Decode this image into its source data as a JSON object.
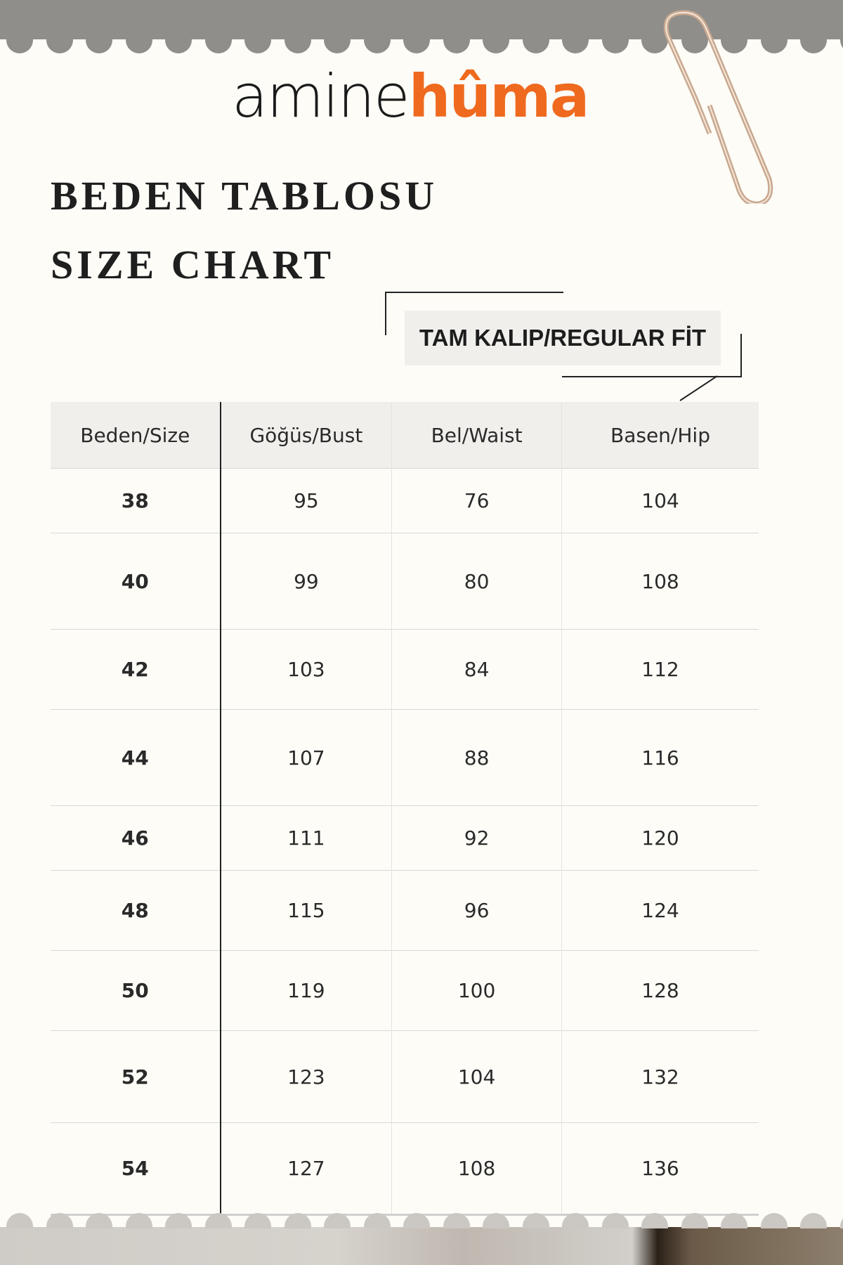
{
  "brand": {
    "part1": "amine",
    "part2": "hûma",
    "accent_color": "#ef6a1f"
  },
  "title_tr": "BEDEN TABLOSU",
  "title_en": "SIZE CHART",
  "fit_badge": "TAM KALIP/REGULAR FİT",
  "table": {
    "headers": [
      "Beden/Size",
      "Göğüs/Bust",
      "Bel/Waist",
      "Basen/Hip"
    ],
    "rows": [
      [
        "38",
        "95",
        "76",
        "104"
      ],
      [
        "40",
        "99",
        "80",
        "108"
      ],
      [
        "42",
        "103",
        "84",
        "112"
      ],
      [
        "44",
        "107",
        "88",
        "116"
      ],
      [
        "46",
        "111",
        "92",
        "120"
      ],
      [
        "48",
        "115",
        "96",
        "124"
      ],
      [
        "50",
        "119",
        "100",
        "128"
      ],
      [
        "52",
        "123",
        "104",
        "132"
      ],
      [
        "54",
        "127",
        "108",
        "136"
      ]
    ]
  }
}
